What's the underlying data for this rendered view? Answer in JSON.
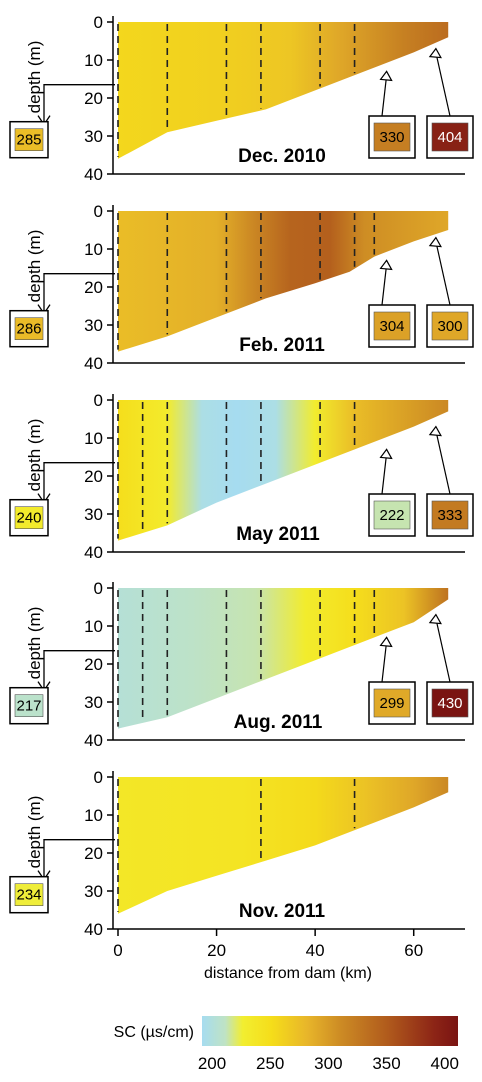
{
  "chart_data": {
    "type": "heatmap",
    "description_units": "specific conductance along reservoir transect",
    "xlabel": "distance from dam (km)",
    "ylabel": "depth (m)",
    "xlim": [
      0,
      70
    ],
    "ylim": [
      0,
      40
    ],
    "x_ticks": [
      "0",
      "20",
      "40",
      "60"
    ],
    "y_ticks": [
      "0",
      "10",
      "20",
      "30",
      "40"
    ],
    "colorbar": {
      "label": "SC (µs/cm)",
      "ticks": [
        "200",
        "250",
        "300",
        "350",
        "400"
      ],
      "range": [
        200,
        420
      ],
      "stops": [
        {
          "v": 200,
          "c": "#a6dcf0"
        },
        {
          "v": 220,
          "c": "#bfe3c4"
        },
        {
          "v": 235,
          "c": "#f2ee30"
        },
        {
          "v": 260,
          "c": "#f5dd1a"
        },
        {
          "v": 290,
          "c": "#e8b62a"
        },
        {
          "v": 320,
          "c": "#cc8a24"
        },
        {
          "v": 360,
          "c": "#b05a1c"
        },
        {
          "v": 400,
          "c": "#8c2416"
        },
        {
          "v": 420,
          "c": "#7a1412"
        }
      ]
    },
    "panels": [
      {
        "title": "Dec. 2010",
        "bottom_profile": [
          [
            0,
            36
          ],
          [
            10,
            29
          ],
          [
            20,
            26
          ],
          [
            30,
            23
          ],
          [
            40,
            18
          ],
          [
            50,
            13
          ],
          [
            60,
            8
          ],
          [
            67,
            4
          ]
        ],
        "dashed_lines_km": [
          0,
          10,
          22,
          29,
          41,
          48
        ],
        "sc_profile": [
          [
            0,
            265
          ],
          [
            20,
            270
          ],
          [
            35,
            278
          ],
          [
            45,
            300
          ],
          [
            58,
            328
          ],
          [
            67,
            345
          ]
        ],
        "annotations": [
          {
            "location": "bottom near dam",
            "value": "285"
          },
          {
            "location": "surface near river inflow",
            "value": "330"
          },
          {
            "location": "river inflow",
            "value": "404"
          }
        ]
      },
      {
        "title": "Feb. 2011",
        "bottom_profile": [
          [
            0,
            37
          ],
          [
            10,
            33
          ],
          [
            20,
            28
          ],
          [
            30,
            23
          ],
          [
            40,
            19
          ],
          [
            47,
            16
          ],
          [
            52,
            12
          ],
          [
            60,
            8
          ],
          [
            67,
            5
          ]
        ],
        "dashed_lines_km": [
          0,
          10,
          22,
          29,
          41,
          48,
          52
        ],
        "sc_profile": [
          [
            0,
            285
          ],
          [
            20,
            295
          ],
          [
            28,
            325
          ],
          [
            35,
            352
          ],
          [
            43,
            355
          ],
          [
            50,
            318
          ],
          [
            67,
            300
          ]
        ],
        "annotations": [
          {
            "location": "bottom near dam",
            "value": "286"
          },
          {
            "location": "surface near river inflow",
            "value": "304"
          },
          {
            "location": "river inflow",
            "value": "300"
          }
        ]
      },
      {
        "title": "May 2011",
        "bottom_profile": [
          [
            0,
            37
          ],
          [
            10,
            33
          ],
          [
            20,
            27
          ],
          [
            30,
            22
          ],
          [
            40,
            17
          ],
          [
            50,
            12
          ],
          [
            60,
            7
          ],
          [
            67,
            3
          ]
        ],
        "dashed_lines_km": [
          0,
          5,
          10,
          22,
          29,
          41,
          48
        ],
        "sc_profile": [
          [
            0,
            258
          ],
          [
            10,
            240
          ],
          [
            17,
            205
          ],
          [
            24,
            200
          ],
          [
            32,
            205
          ],
          [
            40,
            238
          ],
          [
            48,
            285
          ],
          [
            67,
            322
          ]
        ],
        "annotations": [
          {
            "location": "bottom near dam",
            "value": "240"
          },
          {
            "location": "surface near river inflow",
            "value": "222"
          },
          {
            "location": "river inflow",
            "value": "333"
          }
        ]
      },
      {
        "title": "Aug. 2011",
        "bottom_profile": [
          [
            0,
            37
          ],
          [
            10,
            34
          ],
          [
            20,
            29
          ],
          [
            30,
            24
          ],
          [
            40,
            19
          ],
          [
            50,
            14
          ],
          [
            60,
            9
          ],
          [
            67,
            3
          ]
        ],
        "dashed_lines_km": [
          0,
          5,
          10,
          22,
          29,
          41,
          48,
          52
        ],
        "sc_profile": [
          [
            0,
            212
          ],
          [
            15,
            218
          ],
          [
            28,
            222
          ],
          [
            38,
            238
          ],
          [
            48,
            258
          ],
          [
            58,
            280
          ],
          [
            67,
            340
          ]
        ],
        "annotations": [
          {
            "location": "bottom near dam",
            "value": "217"
          },
          {
            "location": "surface near river inflow",
            "value": "299"
          },
          {
            "location": "river inflow",
            "value": "430"
          }
        ]
      },
      {
        "title": "Nov. 2011",
        "bottom_profile": [
          [
            0,
            36
          ],
          [
            10,
            30
          ],
          [
            20,
            26
          ],
          [
            30,
            22
          ],
          [
            40,
            18
          ],
          [
            50,
            13
          ],
          [
            60,
            8
          ],
          [
            67,
            4
          ]
        ],
        "dashed_lines_km": [
          0,
          29,
          48
        ],
        "sc_profile": [
          [
            0,
            245
          ],
          [
            25,
            250
          ],
          [
            40,
            262
          ],
          [
            50,
            280
          ],
          [
            60,
            300
          ],
          [
            67,
            322
          ]
        ],
        "annotations": [
          {
            "location": "bottom near dam",
            "value": "234"
          }
        ]
      }
    ]
  }
}
